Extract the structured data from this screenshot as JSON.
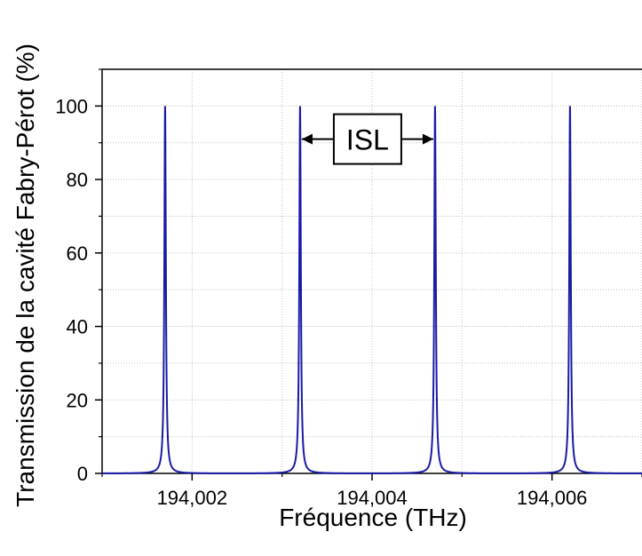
{
  "chart_data": {
    "type": "line",
    "title": "",
    "xlabel": "Fréquence (THz)",
    "ylabel": "Transmission de la cavité Fabry-Pérot (%)",
    "xlim": [
      194.001,
      194.007
    ],
    "ylim": [
      0,
      110
    ],
    "x_ticks": [
      194.002,
      194.004,
      194.006
    ],
    "x_tick_labels": [
      "194,002",
      "194,004",
      "194,006"
    ],
    "y_ticks": [
      0,
      20,
      40,
      60,
      80,
      100
    ],
    "y_tick_labels": [
      "0",
      "20",
      "40",
      "60",
      "80",
      "100"
    ],
    "grid": true,
    "line_color": "#1a1aa6",
    "series": [
      {
        "peaks_x": [
          194.0017,
          194.0032,
          194.0047,
          194.0062
        ],
        "peak_value": 100,
        "fwhm": 2e-05
      }
    ],
    "annotation": {
      "label": "ISL",
      "from_x": 194.0032,
      "to_x": 194.0047,
      "y": 91
    }
  }
}
